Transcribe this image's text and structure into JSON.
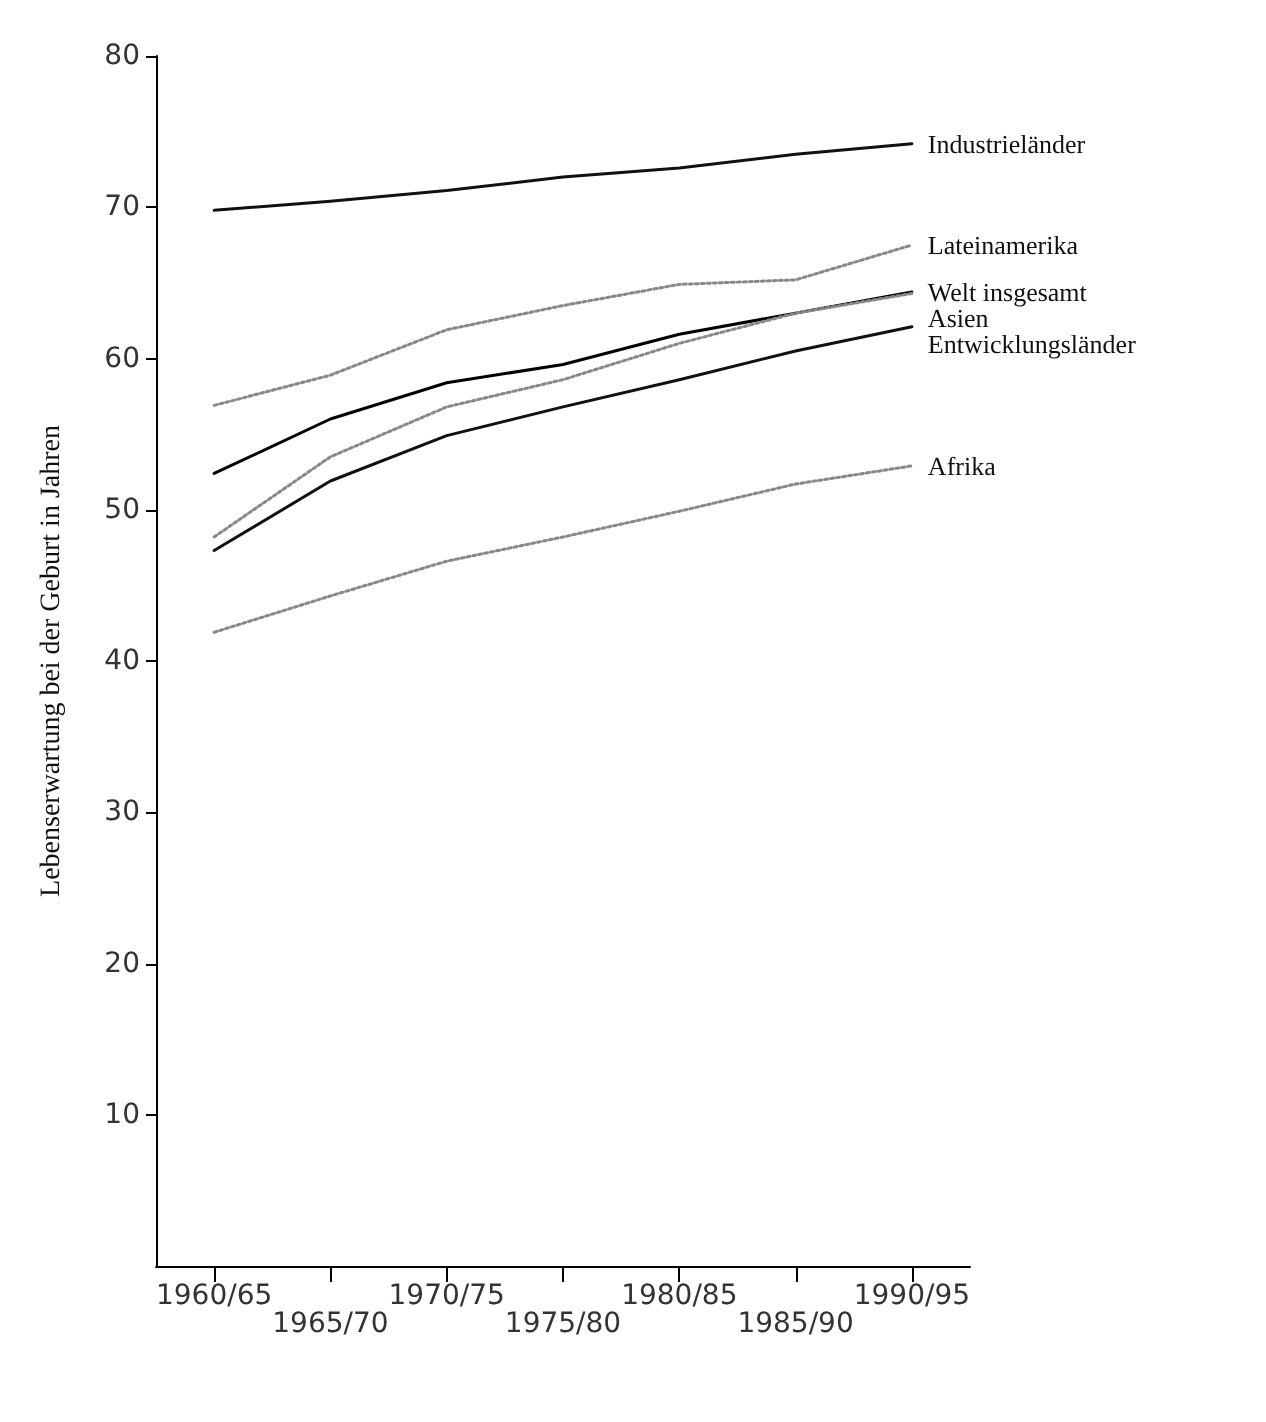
{
  "chart_data": {
    "type": "line",
    "ylabel": "Lebenserwartung bei der Geburt in Jahren",
    "categories": [
      "1960/65",
      "1965/70",
      "1970/75",
      "1975/80",
      "1980/85",
      "1985/90",
      "1990/95"
    ],
    "ylim": [
      0,
      80
    ],
    "yticks": [
      10,
      20,
      30,
      40,
      50,
      60,
      70,
      80
    ],
    "grid": false,
    "legend": false,
    "marker": "none",
    "series": [
      {
        "name": "Industrieländer",
        "color": "#111111",
        "line_style": "solid",
        "values": [
          69.8,
          70.4,
          71.1,
          72.0,
          72.6,
          73.5,
          74.2
        ]
      },
      {
        "name": "Lateinamerika",
        "color": "#888888",
        "line_style": "dotted",
        "values": [
          56.9,
          58.9,
          61.9,
          63.5,
          64.9,
          65.2,
          67.5
        ]
      },
      {
        "name": "Welt insgesamt",
        "color": "#000000",
        "line_style": "solid",
        "values": [
          52.4,
          56.0,
          58.4,
          59.6,
          61.6,
          63.0,
          64.4
        ]
      },
      {
        "name": "Asien",
        "color": "#888888",
        "line_style": "dotted",
        "values": [
          48.2,
          53.5,
          56.8,
          58.6,
          61.0,
          63.0,
          64.3
        ]
      },
      {
        "name": "Entwicklungsländer",
        "color": "#111111",
        "line_style": "solid",
        "values": [
          47.3,
          51.9,
          54.9,
          56.8,
          58.6,
          60.5,
          62.1
        ]
      },
      {
        "name": "Afrika",
        "color": "#888888",
        "line_style": "dotted",
        "values": [
          41.9,
          44.3,
          46.6,
          48.2,
          49.9,
          51.7,
          52.9
        ]
      }
    ]
  }
}
